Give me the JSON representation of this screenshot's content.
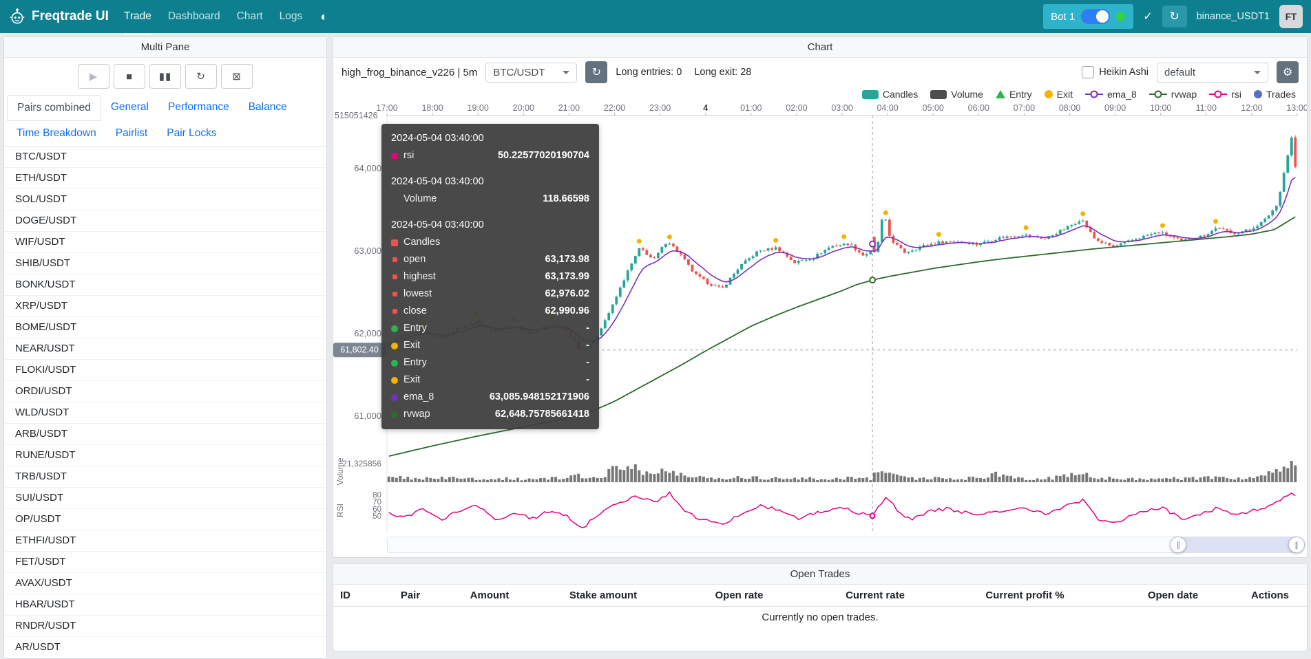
{
  "icons": {
    "theme": "◐",
    "check": "✓",
    "reload": "↻",
    "gear": "⚙",
    "handle": "∥"
  },
  "navbar": {
    "brand": "Freqtrade UI",
    "items": [
      {
        "label": "Trade",
        "active": true
      },
      {
        "label": "Dashboard",
        "active": false
      },
      {
        "label": "Chart",
        "active": false
      },
      {
        "label": "Logs",
        "active": false
      }
    ],
    "bot_chip": {
      "name": "Bot 1"
    },
    "exchange_label": "binance_USDT1",
    "avatar": "FT"
  },
  "sidebar": {
    "title": "Multi Pane",
    "controls": [
      {
        "name": "play",
        "glyph": "▶",
        "disabled": true
      },
      {
        "name": "stop",
        "glyph": "■",
        "disabled": false
      },
      {
        "name": "pause",
        "glyph": "▮▮",
        "disabled": false
      },
      {
        "name": "reload-bot",
        "glyph": "↻",
        "disabled": false
      },
      {
        "name": "force-exit",
        "glyph": "⊠",
        "disabled": false
      }
    ],
    "tabs": [
      "Pairs combined",
      "General",
      "Performance",
      "Balance",
      "Time Breakdown",
      "Pairlist",
      "Pair Locks"
    ],
    "active_tab": "Pairs combined",
    "pairs": [
      "BTC/USDT",
      "ETH/USDT",
      "SOL/USDT",
      "DOGE/USDT",
      "WIF/USDT",
      "SHIB/USDT",
      "BONK/USDT",
      "XRP/USDT",
      "BOME/USDT",
      "NEAR/USDT",
      "FLOKI/USDT",
      "ORDI/USDT",
      "WLD/USDT",
      "ARB/USDT",
      "RUNE/USDT",
      "TRB/USDT",
      "SUI/USDT",
      "OP/USDT",
      "ETHFI/USDT",
      "FET/USDT",
      "AVAX/USDT",
      "HBAR/USDT",
      "RNDR/USDT",
      "AR/USDT"
    ]
  },
  "chart_panel": {
    "title": "Chart",
    "strategy_label": "high_frog_binance_v226 | 5m",
    "pair_select": "BTC/USDT",
    "entries_label": "Long entries: 0",
    "exits_label": "Long exit: 28",
    "heikin_ashi_label": "Heikin Ashi",
    "plot_config_select": "default",
    "legend": [
      {
        "label": "Candles",
        "type": "rect",
        "color": "#26a69a"
      },
      {
        "label": "Volume",
        "type": "rect",
        "color": "#4d4d4d"
      },
      {
        "label": "Entry",
        "type": "tri",
        "color": "#2ab54d"
      },
      {
        "label": "Exit",
        "type": "circ",
        "color": "#f3b300"
      },
      {
        "label": "ema_8",
        "type": "line",
        "color": "#7b2fbe"
      },
      {
        "label": "rvwap",
        "type": "line",
        "color": "#2d6a2d"
      },
      {
        "label": "rsi",
        "type": "line",
        "color": "#e6007e"
      },
      {
        "label": "Trades",
        "type": "dot",
        "color": "#5470c6"
      }
    ]
  },
  "tooltip": {
    "sections": [
      {
        "time": "2024-05-04 03:40:00",
        "rows": [
          {
            "shape": "circle",
            "color": "#e6007e",
            "label": "rsi",
            "value": "50.22577020190704",
            "sub": false
          }
        ]
      },
      {
        "time": "2024-05-04 03:40:00",
        "rows": [
          {
            "shape": "circle",
            "color": "#4a4a4a",
            "label": "Volume",
            "value": "118.66598",
            "sub": false
          }
        ]
      },
      {
        "time": "2024-05-04 03:40:00",
        "rows": [
          {
            "shape": "square",
            "color": "#ef5350",
            "label": "Candles",
            "value": "",
            "sub": false
          },
          {
            "shape": "square",
            "color": "#ef5350",
            "label": "open",
            "value": "63,173.98",
            "sub": true
          },
          {
            "shape": "square",
            "color": "#ef5350",
            "label": "highest",
            "value": "63,173.99",
            "sub": true
          },
          {
            "shape": "square",
            "color": "#ef5350",
            "label": "lowest",
            "value": "62,976.02",
            "sub": true
          },
          {
            "shape": "square",
            "color": "#ef5350",
            "label": "close",
            "value": "62,990.96",
            "sub": true
          },
          {
            "shape": "circle",
            "color": "#2ab54d",
            "label": "Entry",
            "value": "-",
            "sub": false
          },
          {
            "shape": "circle",
            "color": "#f3b300",
            "label": "Exit",
            "value": "-",
            "sub": false
          },
          {
            "shape": "circle",
            "color": "#2ab54d",
            "label": "Entry",
            "value": "-",
            "sub": false
          },
          {
            "shape": "circle",
            "color": "#f3b300",
            "label": "Exit",
            "value": "-",
            "sub": false
          },
          {
            "shape": "circle",
            "color": "#7b2fbe",
            "label": "ema_8",
            "value": "63,085.948152171906",
            "sub": false
          },
          {
            "shape": "circle",
            "color": "#2d6a2d",
            "label": "rvwap",
            "value": "62,648.75785661418",
            "sub": false
          }
        ]
      }
    ]
  },
  "open_trades": {
    "title": "Open Trades",
    "columns": [
      "ID",
      "Pair",
      "Amount",
      "Stake amount",
      "Open rate",
      "Current rate",
      "Current profit %",
      "Open date",
      "Actions"
    ],
    "empty_text": "Currently no open trades."
  },
  "chart_data": {
    "type": "candlestick",
    "pair": "BTC/USDT",
    "timeframe": "5m",
    "hours": 20,
    "candle_count": 240,
    "x_labels": [
      "17:00",
      "18:00",
      "19:00",
      "20:00",
      "21:00",
      "22:00",
      "23:00",
      "4",
      "01:00",
      "02:00",
      "03:00",
      "04:00",
      "05:00",
      "06:00",
      "07:00",
      "08:00",
      "09:00",
      "10:00",
      "11:00",
      "12:00",
      "13:00"
    ],
    "price_ticks": [
      {
        "value": 64000,
        "label": "64,000"
      },
      {
        "value": 63000,
        "label": "63,000"
      },
      {
        "value": 62000,
        "label": "62,000"
      },
      {
        "value": 61000,
        "label": "61,000"
      }
    ],
    "top_left_axis_label": "515051426",
    "volume_axis_label": "21,325856",
    "rsi_ticks": [
      80,
      70,
      60,
      50
    ],
    "colors": {
      "up": "#26a69a",
      "down": "#ef5350",
      "ema_8": "#7b2fbe",
      "rvwap": "#2d6a2d",
      "rsi": "#e6007e",
      "volume": "#777777",
      "exit": "#f3b300"
    },
    "crosshair": {
      "t": 10.6667,
      "time": "2024-05-04 03:40:00",
      "price": 61802.4,
      "price_label": "61,802.40"
    },
    "highlight": {
      "index": 128,
      "open": 63173.98,
      "high": 63173.99,
      "low": 62976.02,
      "close": 62990.96,
      "volume": 118.66598,
      "rsi": 50.22577020190704,
      "ema_8": 63085.948152171906,
      "rvwap": 62648.75785661418
    },
    "close_anchors": [
      [
        0,
        61850
      ],
      [
        0.4,
        61980
      ],
      [
        0.8,
        62040
      ],
      [
        1.2,
        61940
      ],
      [
        1.6,
        62060
      ],
      [
        2.0,
        62140
      ],
      [
        2.4,
        62030
      ],
      [
        2.8,
        62100
      ],
      [
        3.2,
        62010
      ],
      [
        3.6,
        62120
      ],
      [
        4.0,
        62040
      ],
      [
        4.3,
        61790
      ],
      [
        4.6,
        61920
      ],
      [
        5.0,
        62340
      ],
      [
        5.3,
        62720
      ],
      [
        5.6,
        63040
      ],
      [
        5.9,
        62890
      ],
      [
        6.2,
        63130
      ],
      [
        6.5,
        62950
      ],
      [
        6.8,
        62720
      ],
      [
        7.1,
        62610
      ],
      [
        7.4,
        62540
      ],
      [
        7.8,
        62820
      ],
      [
        8.2,
        63000
      ],
      [
        8.6,
        63040
      ],
      [
        9.0,
        62860
      ],
      [
        9.4,
        62920
      ],
      [
        9.8,
        63060
      ],
      [
        10.2,
        63090
      ],
      [
        10.5,
        62950
      ],
      [
        10.67,
        62991
      ],
      [
        10.83,
        63100
      ],
      [
        10.95,
        63470
      ],
      [
        11.1,
        63150
      ],
      [
        11.4,
        62980
      ],
      [
        11.8,
        63060
      ],
      [
        12.2,
        63110
      ],
      [
        12.6,
        63120
      ],
      [
        13.0,
        63080
      ],
      [
        13.5,
        63160
      ],
      [
        14.0,
        63200
      ],
      [
        14.5,
        63150
      ],
      [
        15.0,
        63290
      ],
      [
        15.3,
        63390
      ],
      [
        15.6,
        63140
      ],
      [
        16.0,
        63050
      ],
      [
        16.5,
        63150
      ],
      [
        17.0,
        63230
      ],
      [
        17.5,
        63120
      ],
      [
        18.0,
        63190
      ],
      [
        18.3,
        63290
      ],
      [
        18.6,
        63210
      ],
      [
        19.0,
        63260
      ],
      [
        19.3,
        63360
      ],
      [
        19.6,
        63560
      ],
      [
        19.8,
        64080
      ],
      [
        19.92,
        64380
      ],
      [
        20,
        64020
      ]
    ],
    "rvwap_anchors": [
      [
        0,
        60510
      ],
      [
        1,
        60640
      ],
      [
        2,
        60760
      ],
      [
        3,
        60870
      ],
      [
        4,
        60980
      ],
      [
        4.5,
        61060
      ],
      [
        5,
        61180
      ],
      [
        5.5,
        61330
      ],
      [
        6,
        61480
      ],
      [
        6.5,
        61630
      ],
      [
        7,
        61790
      ],
      [
        7.5,
        61940
      ],
      [
        8,
        62090
      ],
      [
        8.5,
        62210
      ],
      [
        9,
        62320
      ],
      [
        9.5,
        62420
      ],
      [
        10,
        62520
      ],
      [
        10.3,
        62590
      ],
      [
        10.67,
        62649
      ],
      [
        11,
        62690
      ],
      [
        11.5,
        62740
      ],
      [
        12,
        62790
      ],
      [
        12.5,
        62830
      ],
      [
        13,
        62870
      ],
      [
        13.5,
        62905
      ],
      [
        14,
        62935
      ],
      [
        14.5,
        62965
      ],
      [
        15,
        62995
      ],
      [
        15.5,
        63025
      ],
      [
        16,
        63050
      ],
      [
        16.5,
        63075
      ],
      [
        17,
        63100
      ],
      [
        17.5,
        63125
      ],
      [
        18,
        63150
      ],
      [
        18.5,
        63175
      ],
      [
        19,
        63205
      ],
      [
        19.5,
        63260
      ],
      [
        20,
        63430
      ]
    ],
    "volume_anchors": [
      [
        0,
        0.18
      ],
      [
        0.5,
        0.22
      ],
      [
        1,
        0.16
      ],
      [
        1.5,
        0.2
      ],
      [
        2,
        0.15
      ],
      [
        2.5,
        0.18
      ],
      [
        3,
        0.14
      ],
      [
        3.5,
        0.17
      ],
      [
        4,
        0.2
      ],
      [
        4.3,
        0.3
      ],
      [
        4.6,
        0.2
      ],
      [
        4.9,
        0.45
      ],
      [
        5.1,
        0.75
      ],
      [
        5.3,
        0.6
      ],
      [
        5.5,
        0.8
      ],
      [
        5.7,
        0.5
      ],
      [
        5.9,
        0.35
      ],
      [
        6.1,
        0.55
      ],
      [
        6.3,
        0.4
      ],
      [
        6.6,
        0.3
      ],
      [
        7,
        0.22
      ],
      [
        7.5,
        0.2
      ],
      [
        8,
        0.25
      ],
      [
        8.5,
        0.18
      ],
      [
        9,
        0.2
      ],
      [
        9.5,
        0.15
      ],
      [
        10,
        0.18
      ],
      [
        10.4,
        0.22
      ],
      [
        10.67,
        0.15
      ],
      [
        10.9,
        0.9
      ],
      [
        11.1,
        0.4
      ],
      [
        11.5,
        0.2
      ],
      [
        12,
        0.18
      ],
      [
        12.5,
        0.15
      ],
      [
        13,
        0.2
      ],
      [
        13.4,
        0.35
      ],
      [
        13.8,
        0.2
      ],
      [
        14.5,
        0.15
      ],
      [
        15,
        0.3
      ],
      [
        15.3,
        0.45
      ],
      [
        15.6,
        0.25
      ],
      [
        16,
        0.18
      ],
      [
        16.5,
        0.15
      ],
      [
        17,
        0.2
      ],
      [
        17.5,
        0.15
      ],
      [
        18,
        0.2
      ],
      [
        18.5,
        0.18
      ],
      [
        19,
        0.2
      ],
      [
        19.4,
        0.35
      ],
      [
        19.7,
        0.8
      ],
      [
        19.85,
        1.0
      ],
      [
        20,
        0.75
      ]
    ],
    "rsi_anchors": [
      [
        0,
        55
      ],
      [
        0.4,
        47
      ],
      [
        0.8,
        60
      ],
      [
        1.2,
        44
      ],
      [
        1.6,
        58
      ],
      [
        2,
        64
      ],
      [
        2.4,
        42
      ],
      [
        2.8,
        56
      ],
      [
        3.2,
        46
      ],
      [
        3.6,
        58
      ],
      [
        4,
        48
      ],
      [
        4.3,
        33
      ],
      [
        4.6,
        50
      ],
      [
        5,
        68
      ],
      [
        5.5,
        78
      ],
      [
        5.9,
        70
      ],
      [
        6.2,
        83
      ],
      [
        6.5,
        58
      ],
      [
        6.8,
        47
      ],
      [
        7.1,
        42
      ],
      [
        7.4,
        36
      ],
      [
        7.8,
        55
      ],
      [
        8.2,
        64
      ],
      [
        8.6,
        60
      ],
      [
        9,
        46
      ],
      [
        9.5,
        56
      ],
      [
        10,
        62
      ],
      [
        10.3,
        55
      ],
      [
        10.67,
        50.2
      ],
      [
        10.95,
        76
      ],
      [
        11.2,
        60
      ],
      [
        11.5,
        44
      ],
      [
        11.9,
        56
      ],
      [
        12.3,
        60
      ],
      [
        12.7,
        55
      ],
      [
        13,
        50
      ],
      [
        13.5,
        58
      ],
      [
        14,
        62
      ],
      [
        14.5,
        52
      ],
      [
        15,
        66
      ],
      [
        15.3,
        72
      ],
      [
        15.6,
        46
      ],
      [
        16,
        40
      ],
      [
        16.5,
        54
      ],
      [
        17,
        62
      ],
      [
        17.5,
        46
      ],
      [
        18,
        56
      ],
      [
        18.3,
        62
      ],
      [
        18.6,
        50
      ],
      [
        19,
        58
      ],
      [
        19.3,
        62
      ],
      [
        19.6,
        72
      ],
      [
        19.9,
        85
      ],
      [
        20,
        76
      ]
    ],
    "datazoom": {
      "start_pct": 87,
      "end_pct": 100
    }
  }
}
